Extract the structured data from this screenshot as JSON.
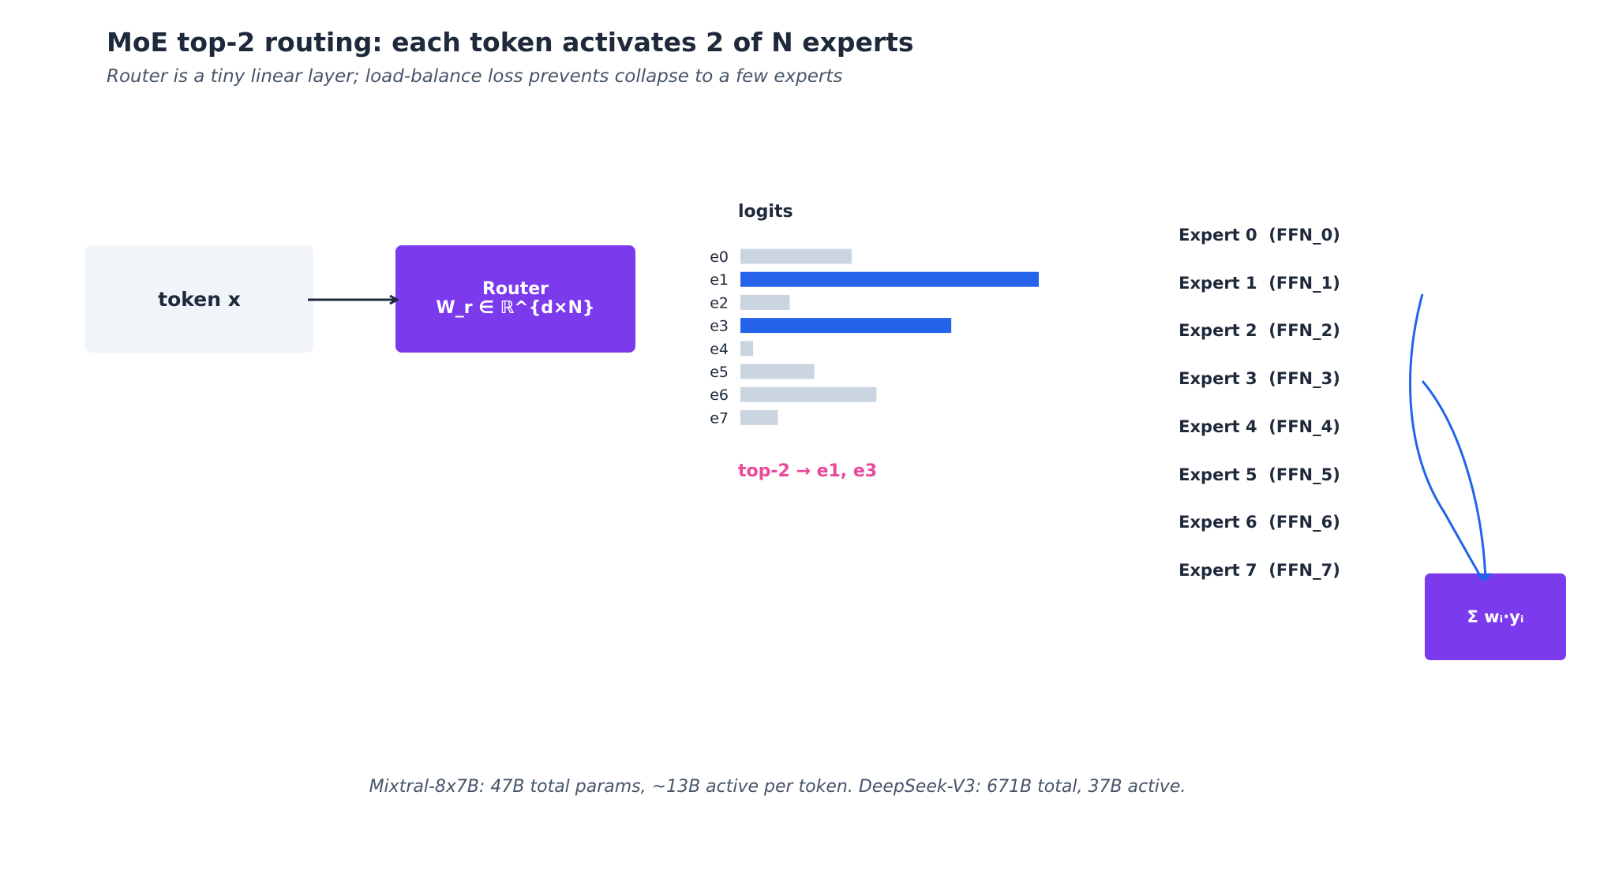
{
  "title": "MoE top-2 routing: each token activates 2 of N experts",
  "subtitle": "Router is a tiny linear layer; load-balance loss prevents collapse to a few experts",
  "token": {
    "label": "token x"
  },
  "router": {
    "line1": "Router",
    "line2": "W_r ∈ ℝ^{d×N}"
  },
  "chart_data": {
    "type": "bar",
    "orientation": "horizontal",
    "title": "logits",
    "categories": [
      "e0",
      "e1",
      "e2",
      "e3",
      "e4",
      "e5",
      "e6",
      "e7"
    ],
    "values": [
      1.4,
      3.75,
      0.62,
      2.65,
      0.16,
      0.93,
      1.71,
      0.47
    ],
    "highlighted": [
      "e1",
      "e3"
    ],
    "colors": {
      "default": "#cbd5e1",
      "highlight": "#2563eb"
    }
  },
  "topk_label": "top-2 → e1, e3",
  "experts": [
    {
      "label": "Expert 0  (FFN_0)",
      "active": false
    },
    {
      "label": "Expert 1  (FFN_1)",
      "active": true
    },
    {
      "label": "Expert 2  (FFN_2)",
      "active": false
    },
    {
      "label": "Expert 3  (FFN_3)",
      "active": true
    },
    {
      "label": "Expert 4  (FFN_4)",
      "active": false
    },
    {
      "label": "Expert 5  (FFN_5)",
      "active": false
    },
    {
      "label": "Expert 6  (FFN_6)",
      "active": false
    },
    {
      "label": "Expert 7  (FFN_7)",
      "active": false
    }
  ],
  "combine": {
    "label": "Σ wᵢ·yᵢ"
  },
  "footnote": "Mixtral-8x7B: 47B total params, ~13B active per token. DeepSeek-V3: 671B total, 37B active.",
  "colors": {
    "router": "#7c3aed",
    "accent": "#2563eb",
    "highlight_text": "#ec4899",
    "arrow": "#1e293b"
  }
}
